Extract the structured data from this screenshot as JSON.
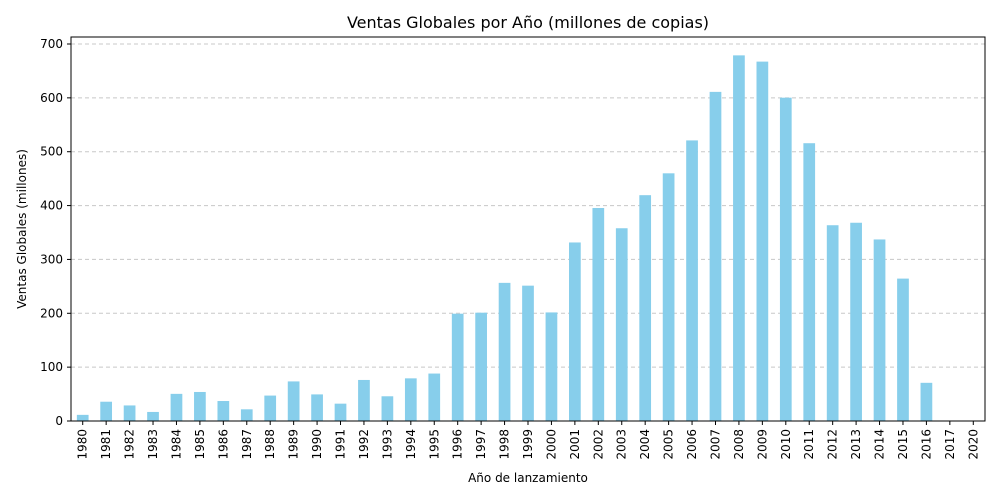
{
  "chart_data": {
    "type": "bar",
    "title": "Ventas Globales por Año (millones de copias)",
    "xlabel": "Año de lanzamiento",
    "ylabel": "Ventas Globales (millones)",
    "categories": [
      "1980",
      "1981",
      "1982",
      "1983",
      "1984",
      "1985",
      "1986",
      "1987",
      "1988",
      "1989",
      "1990",
      "1991",
      "1992",
      "1993",
      "1994",
      "1995",
      "1996",
      "1997",
      "1998",
      "1999",
      "2000",
      "2001",
      "2002",
      "2003",
      "2004",
      "2005",
      "2006",
      "2007",
      "2008",
      "2009",
      "2010",
      "2011",
      "2012",
      "2013",
      "2014",
      "2015",
      "2016",
      "2017",
      "2020"
    ],
    "values": [
      11.4,
      35.8,
      28.9,
      16.8,
      50.4,
      53.9,
      37.1,
      21.7,
      47.2,
      73.5,
      49.4,
      32.2,
      76.2,
      45.9,
      79.2,
      88.1,
      199.2,
      201.1,
      256.5,
      251.3,
      201.6,
      331.5,
      395.5,
      357.9,
      419.3,
      459.9,
      521.0,
      611.1,
      678.9,
      667.3,
      600.3,
      515.8,
      363.5,
      368.1,
      337.1,
      264.4,
      70.9,
      0.05,
      0.29
    ],
    "ylim": [
      0,
      713
    ],
    "yticks": [
      0,
      100,
      200,
      300,
      400,
      500,
      600,
      700
    ],
    "grid": "y",
    "bar_color": "#87CEEB",
    "grid_color": "#c8c8c8"
  }
}
